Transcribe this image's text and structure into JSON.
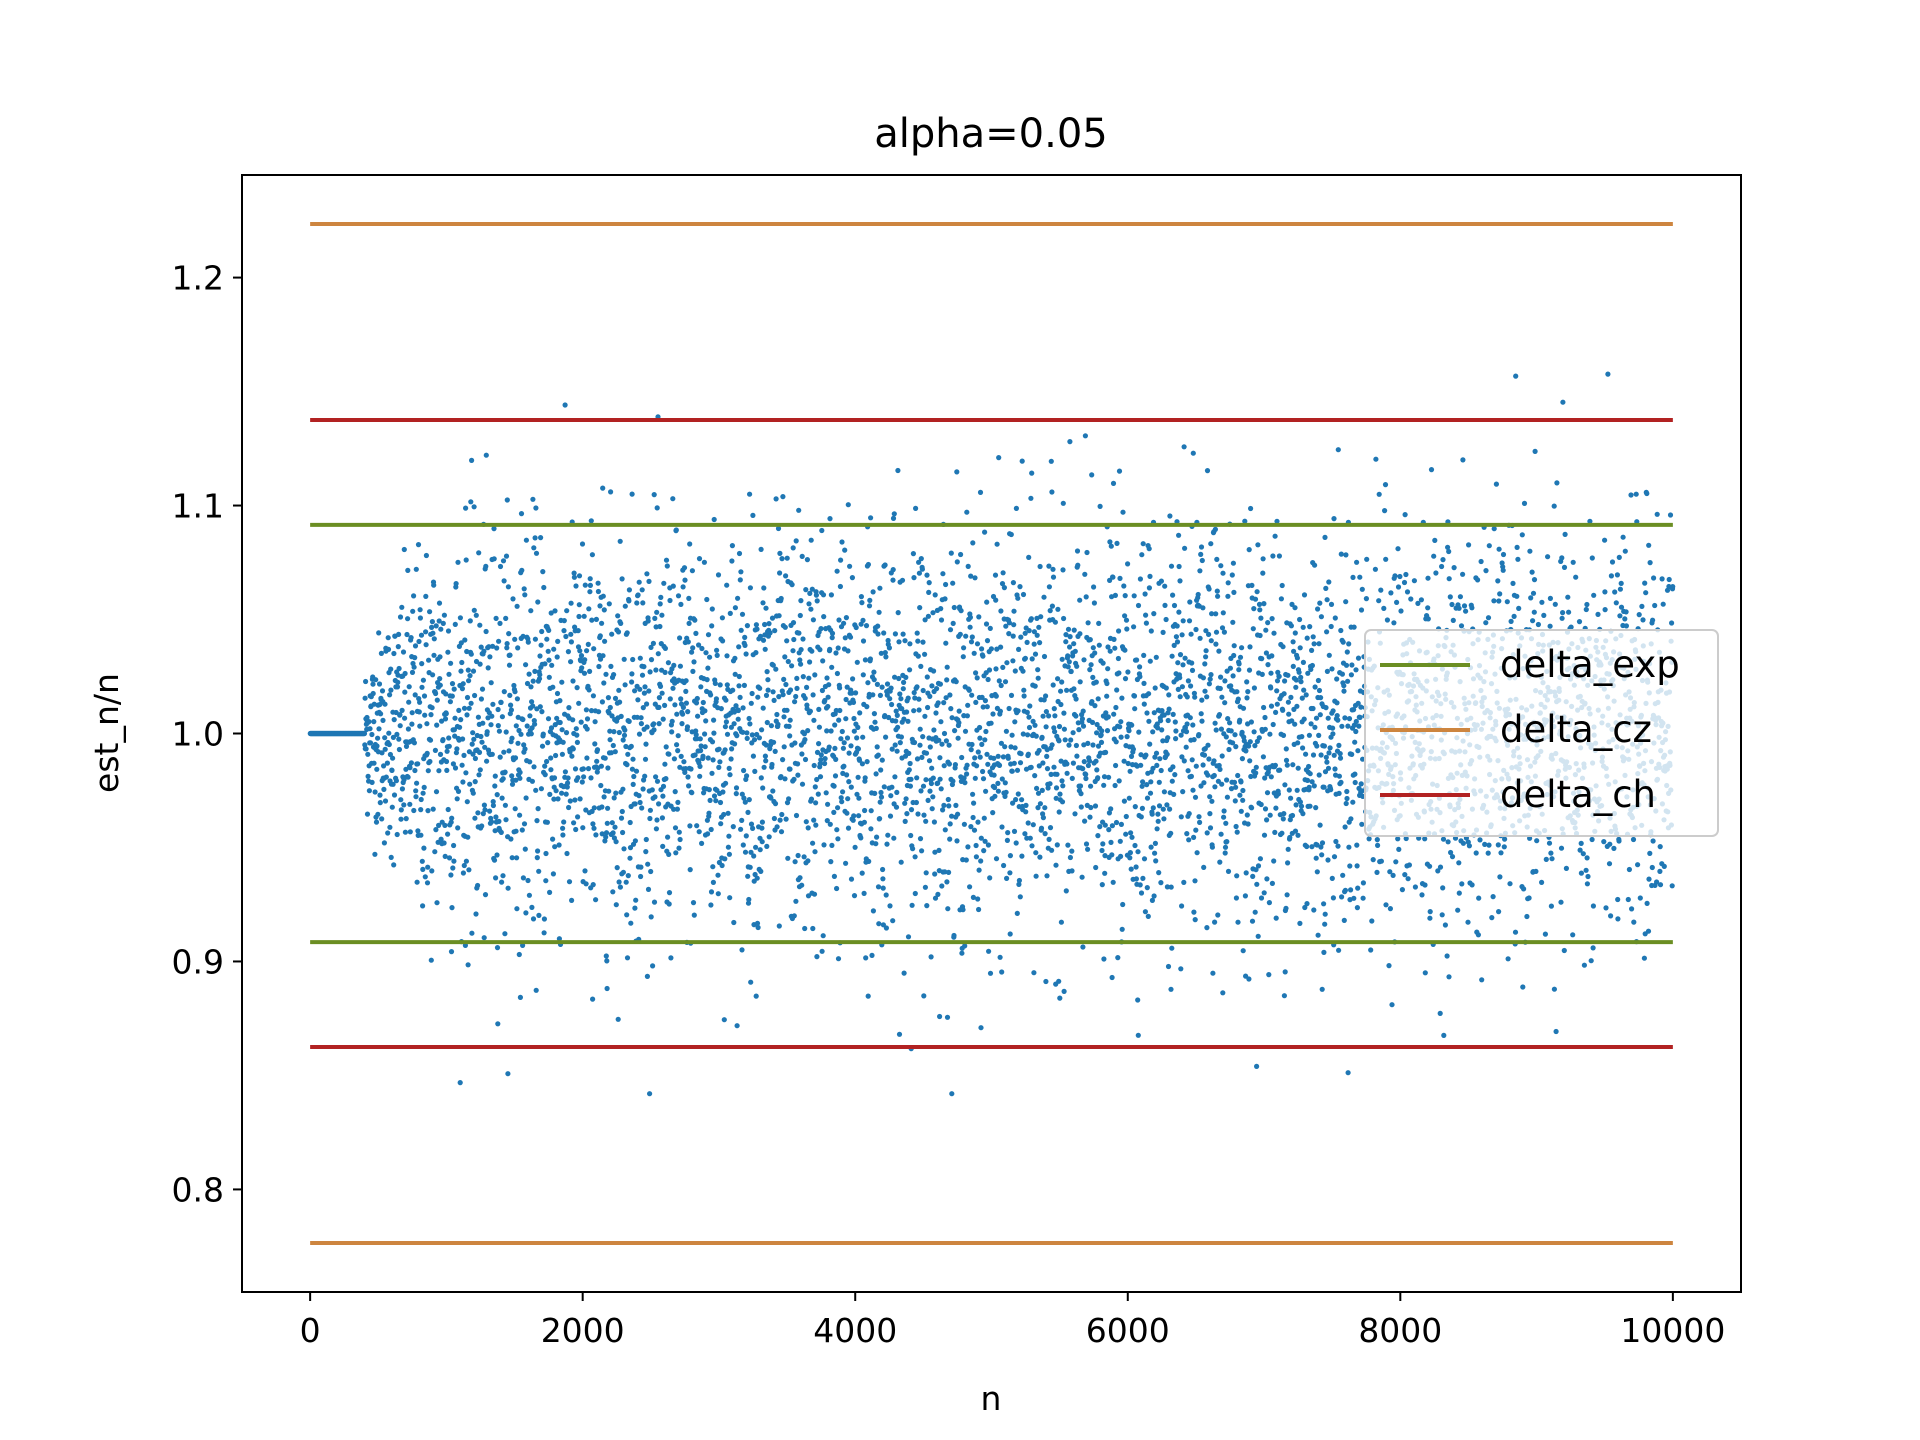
{
  "chart_data": {
    "type": "scatter",
    "title": "alpha=0.05",
    "xlabel": "n",
    "ylabel": "est_n/n",
    "xlim": [
      -500,
      10500
    ],
    "ylim": [
      0.755,
      1.245
    ],
    "x_ticks": [
      0,
      2000,
      4000,
      6000,
      8000,
      10000
    ],
    "x_tick_labels": [
      "0",
      "2000",
      "4000",
      "6000",
      "8000",
      "10000"
    ],
    "y_ticks": [
      0.8,
      0.9,
      1.0,
      1.1,
      1.2
    ],
    "y_tick_labels": [
      "0.8",
      "0.9",
      "1.0",
      "1.1",
      "1.2"
    ],
    "grid": false,
    "legend_position": "center-right",
    "scatter": {
      "name": "est_n/n",
      "color": "#1f77b4",
      "n_min": 1,
      "n_max": 10000,
      "center": 1.0,
      "exact_until_n": 400,
      "description_of_spread": "points equal 1.0 for n below about 400, then scatter roughly between 0.85 and 1.19"
    },
    "series": [
      {
        "name": "delta_exp",
        "color": "#6b8e23",
        "lower": 0.9085,
        "upper": 1.0915,
        "x_range": [
          0,
          10000
        ]
      },
      {
        "name": "delta_cz",
        "color": "#cd853f",
        "lower": 0.7765,
        "upper": 1.2235,
        "x_range": [
          0,
          10000
        ]
      },
      {
        "name": "delta_ch",
        "color": "#b22222",
        "lower": 0.8625,
        "upper": 1.1375,
        "x_range": [
          0,
          10000
        ]
      }
    ]
  }
}
